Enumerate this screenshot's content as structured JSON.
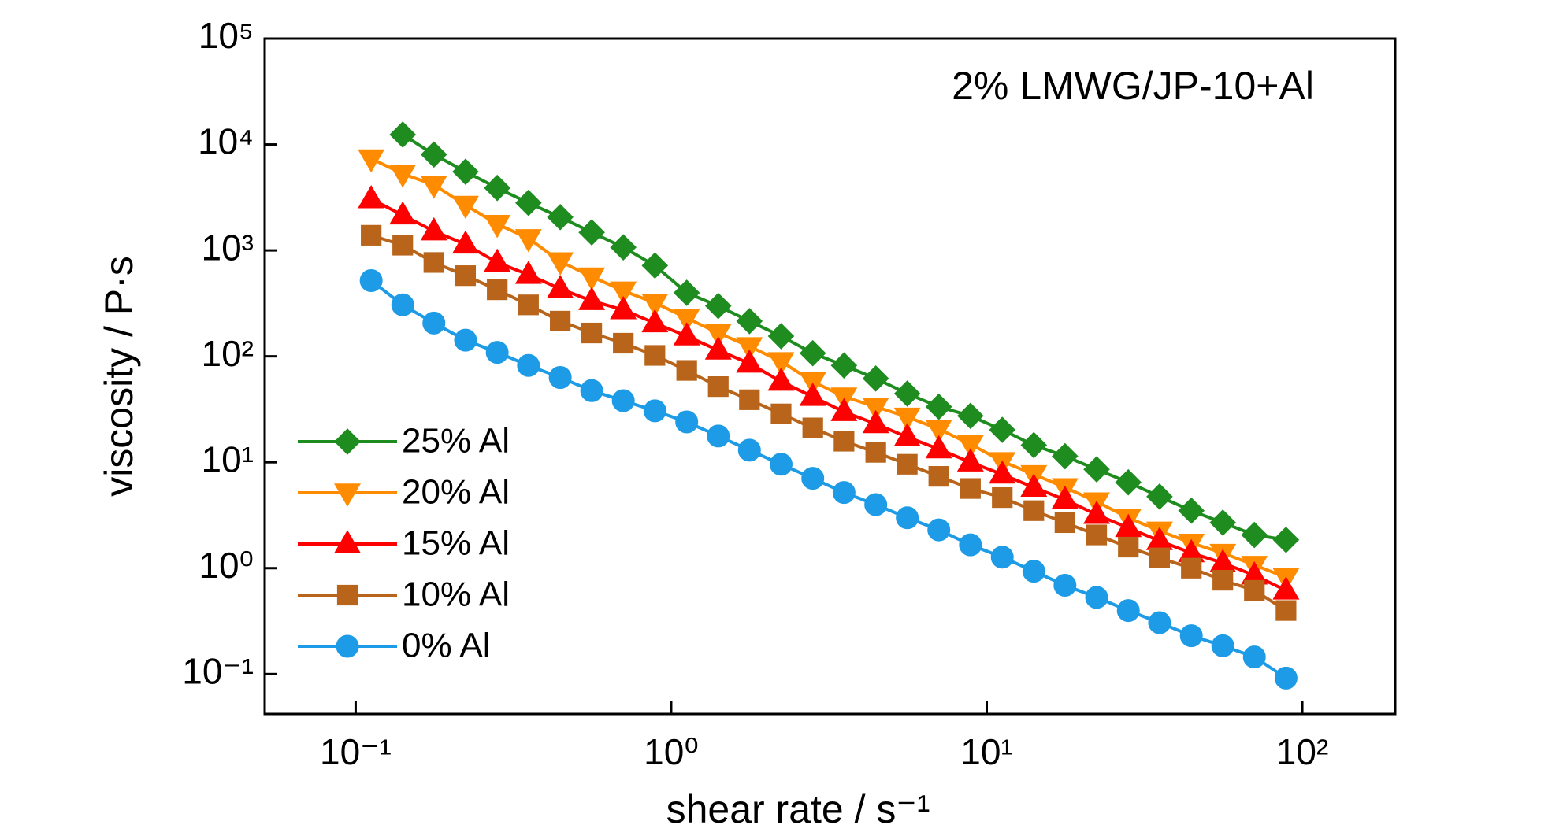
{
  "chart_data": {
    "type": "line",
    "title": "2% LMWG/JP-10+Al",
    "xlabel": "shear rate / s⁻¹",
    "ylabel": "viscosity / P·s",
    "xscale": "log",
    "yscale": "log",
    "xlim": [
      0.0515,
      197
    ],
    "ylim": [
      0.042,
      100000
    ],
    "xticks": [
      {
        "value": 0.1,
        "label": "10⁻¹"
      },
      {
        "value": 1,
        "label": "10⁰"
      },
      {
        "value": 10,
        "label": "10¹"
      },
      {
        "value": 100,
        "label": "10²"
      }
    ],
    "yticks": [
      {
        "value": 0.1,
        "label": "10⁻¹"
      },
      {
        "value": 1,
        "label": "10⁰"
      },
      {
        "value": 10,
        "label": "10¹"
      },
      {
        "value": 100,
        "label": "10²"
      },
      {
        "value": 1000,
        "label": "10³"
      },
      {
        "value": 10000,
        "label": "10⁴"
      },
      {
        "value": 100000,
        "label": "10⁵"
      }
    ],
    "legend": "lower left",
    "x": [
      0.112,
      0.141,
      0.177,
      0.223,
      0.281,
      0.353,
      0.445,
      0.56,
      0.705,
      0.888,
      1.12,
      1.41,
      1.77,
      2.23,
      2.81,
      3.53,
      4.45,
      5.6,
      7.05,
      8.88,
      11.2,
      14.1,
      17.7,
      22.3,
      28.1,
      35.3,
      44.5,
      56.0,
      70.5,
      88.8
    ],
    "series": [
      {
        "name": "25% Al",
        "color": "#1e8c1e",
        "marker": "diamond",
        "values": [
          null,
          12400,
          8040,
          5530,
          3890,
          2810,
          2060,
          1480,
          1070,
          719,
          398,
          299,
          215,
          155,
          107,
          82,
          61.7,
          44.5,
          33.4,
          27.4,
          20.2,
          14.5,
          11.4,
          8.57,
          6.46,
          4.74,
          3.49,
          2.69,
          2.06,
          1.85
        ]
      },
      {
        "name": "20% Al",
        "color": "#ff8c00",
        "marker": "triangle-down",
        "values": [
          7360,
          5290,
          4160,
          2680,
          1770,
          1300,
          786,
          565,
          416,
          320,
          230,
          166,
          124,
          89.6,
          57.8,
          41.6,
          33.4,
          26.8,
          20.6,
          14.8,
          10.2,
          7.69,
          5.78,
          4.25,
          2.99,
          2.25,
          1.73,
          1.39,
          1.07,
          0.82
        ]
      },
      {
        "name": "15% Al",
        "color": "#ff0000",
        "marker": "triangle-up",
        "values": [
          3060,
          2150,
          1520,
          1140,
          769,
          590,
          434,
          334,
          274,
          206,
          155,
          114,
          85.7,
          57.8,
          41.6,
          29.9,
          23.0,
          17.3,
          13.3,
          10.0,
          7.69,
          5.78,
          4.44,
          3.2,
          2.4,
          1.81,
          1.39,
          1.12,
          0.857,
          0.617
        ]
      },
      {
        "name": "10% Al",
        "color": "#b8651b",
        "marker": "square",
        "values": [
          1390,
          1120,
          769,
          578,
          425,
          306,
          215,
          166,
          133,
          102,
          73.6,
          51.8,
          38.9,
          28.6,
          21.1,
          15.8,
          12.4,
          9.57,
          7.36,
          5.65,
          4.64,
          3.49,
          2.69,
          2.06,
          1.58,
          1.25,
          1.0,
          0.769,
          0.617,
          0.398
        ]
      },
      {
        "name": "0% Al",
        "color": "#1e9be6",
        "marker": "circle",
        "values": [
          518,
          306,
          206,
          142,
          109,
          82.0,
          63.1,
          47.4,
          38.1,
          30.6,
          24.0,
          17.7,
          13.0,
          9.57,
          7.05,
          5.18,
          3.98,
          2.99,
          2.3,
          1.66,
          1.27,
          0.936,
          0.689,
          0.53,
          0.398,
          0.306,
          0.23,
          0.185,
          0.145,
          0.0917
        ]
      }
    ]
  }
}
